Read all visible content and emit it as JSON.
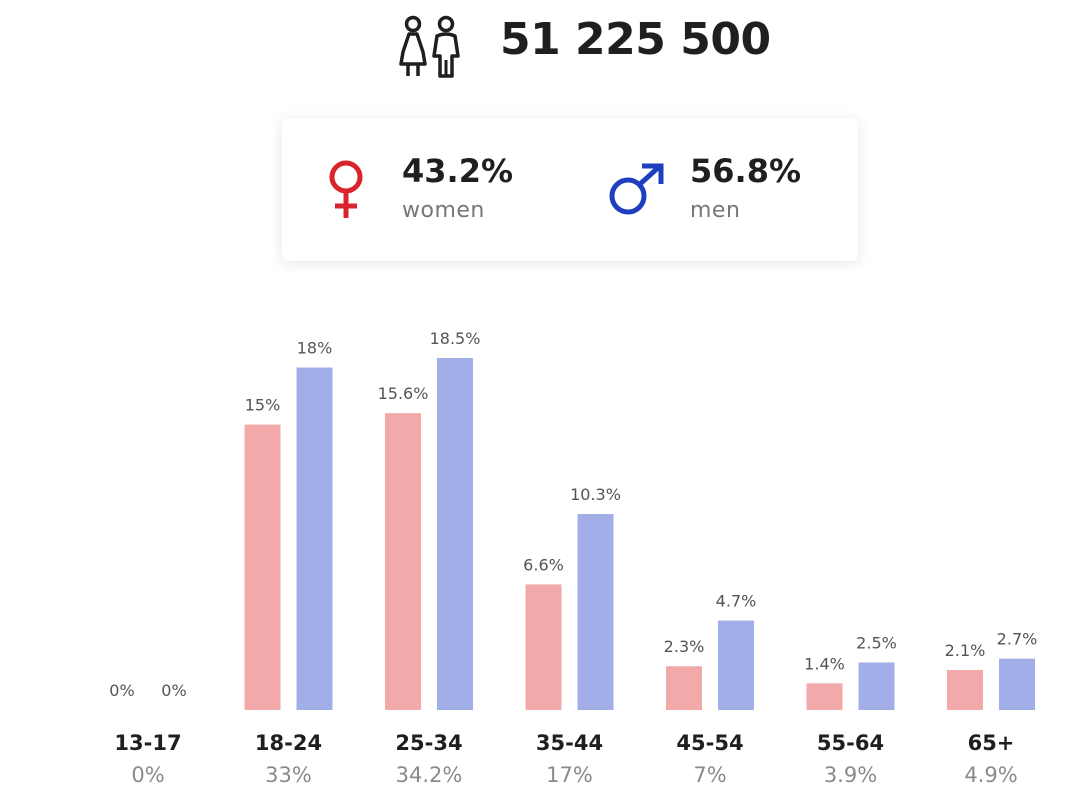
{
  "header": {
    "total": "51 225 500",
    "icon": "people-icon"
  },
  "gender": {
    "women": {
      "percent": "43.2%",
      "label": "women",
      "icon": "female-symbol-icon",
      "color": "#d9232d"
    },
    "men": {
      "percent": "56.8%",
      "label": "men",
      "icon": "male-symbol-icon",
      "color": "#1e3fbf"
    }
  },
  "chart_data": {
    "type": "bar",
    "categories": [
      "13-17",
      "18-24",
      "25-34",
      "35-44",
      "45-54",
      "55-64",
      "65+"
    ],
    "category_totals": [
      "0%",
      "33%",
      "34.2%",
      "17%",
      "7%",
      "3.9%",
      "4.9%"
    ],
    "series": [
      {
        "name": "women",
        "color": "#f2a9aa",
        "values": [
          0,
          15,
          15.6,
          6.6,
          2.3,
          1.4,
          2.1
        ],
        "labels": [
          "0%",
          "15%",
          "15.6%",
          "6.6%",
          "2.3%",
          "1.4%",
          "2.1%"
        ]
      },
      {
        "name": "men",
        "color": "#a2aee8",
        "values": [
          0,
          18,
          18.5,
          10.3,
          4.7,
          2.5,
          2.7
        ],
        "labels": [
          "0%",
          "18%",
          "18.5%",
          "10.3%",
          "4.7%",
          "2.5%",
          "2.7%"
        ]
      }
    ],
    "ylim": [
      0,
      18.5
    ],
    "grid": false,
    "legend": "none"
  }
}
